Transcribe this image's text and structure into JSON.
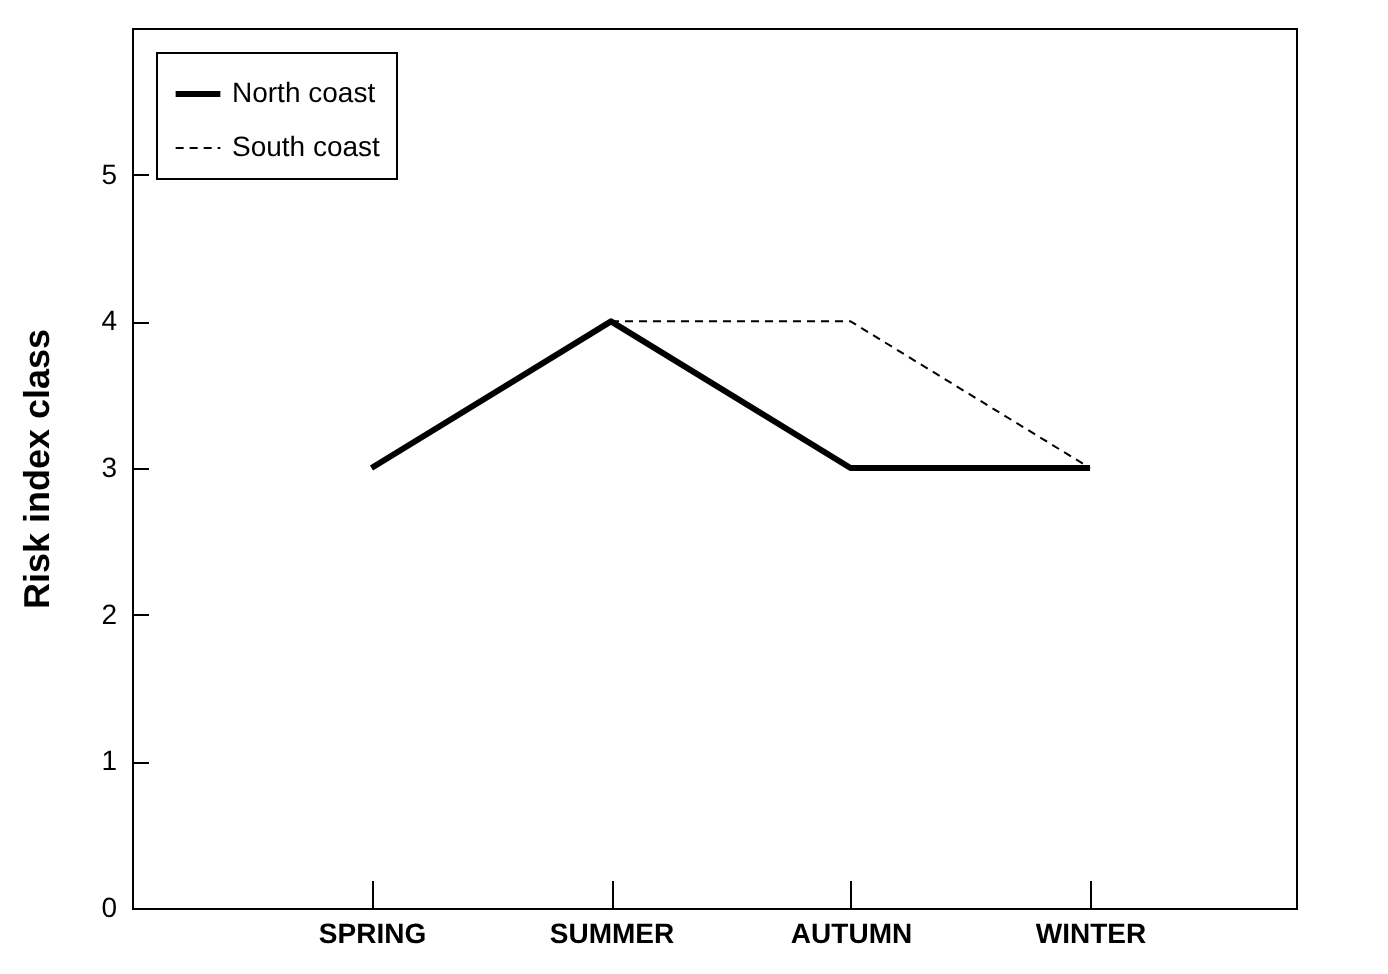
{
  "chart_data": {
    "type": "line",
    "ylabel": "Risk index class",
    "categories": [
      "SPRING",
      "SUMMER",
      "AUTUMN",
      "WINTER"
    ],
    "series": [
      {
        "name": "North coast",
        "color": "#000000",
        "line_style": "solid",
        "values": [
          3,
          4,
          3,
          3
        ]
      },
      {
        "name": "South coast",
        "color": "#000000",
        "line_style": "dashed",
        "values": [
          null,
          4,
          4,
          3
        ]
      }
    ],
    "ylim": [
      0,
      6
    ],
    "yticks": [
      0,
      1,
      2,
      3,
      4,
      5
    ],
    "legend": "top left",
    "grid": false,
    "marker": "none"
  }
}
